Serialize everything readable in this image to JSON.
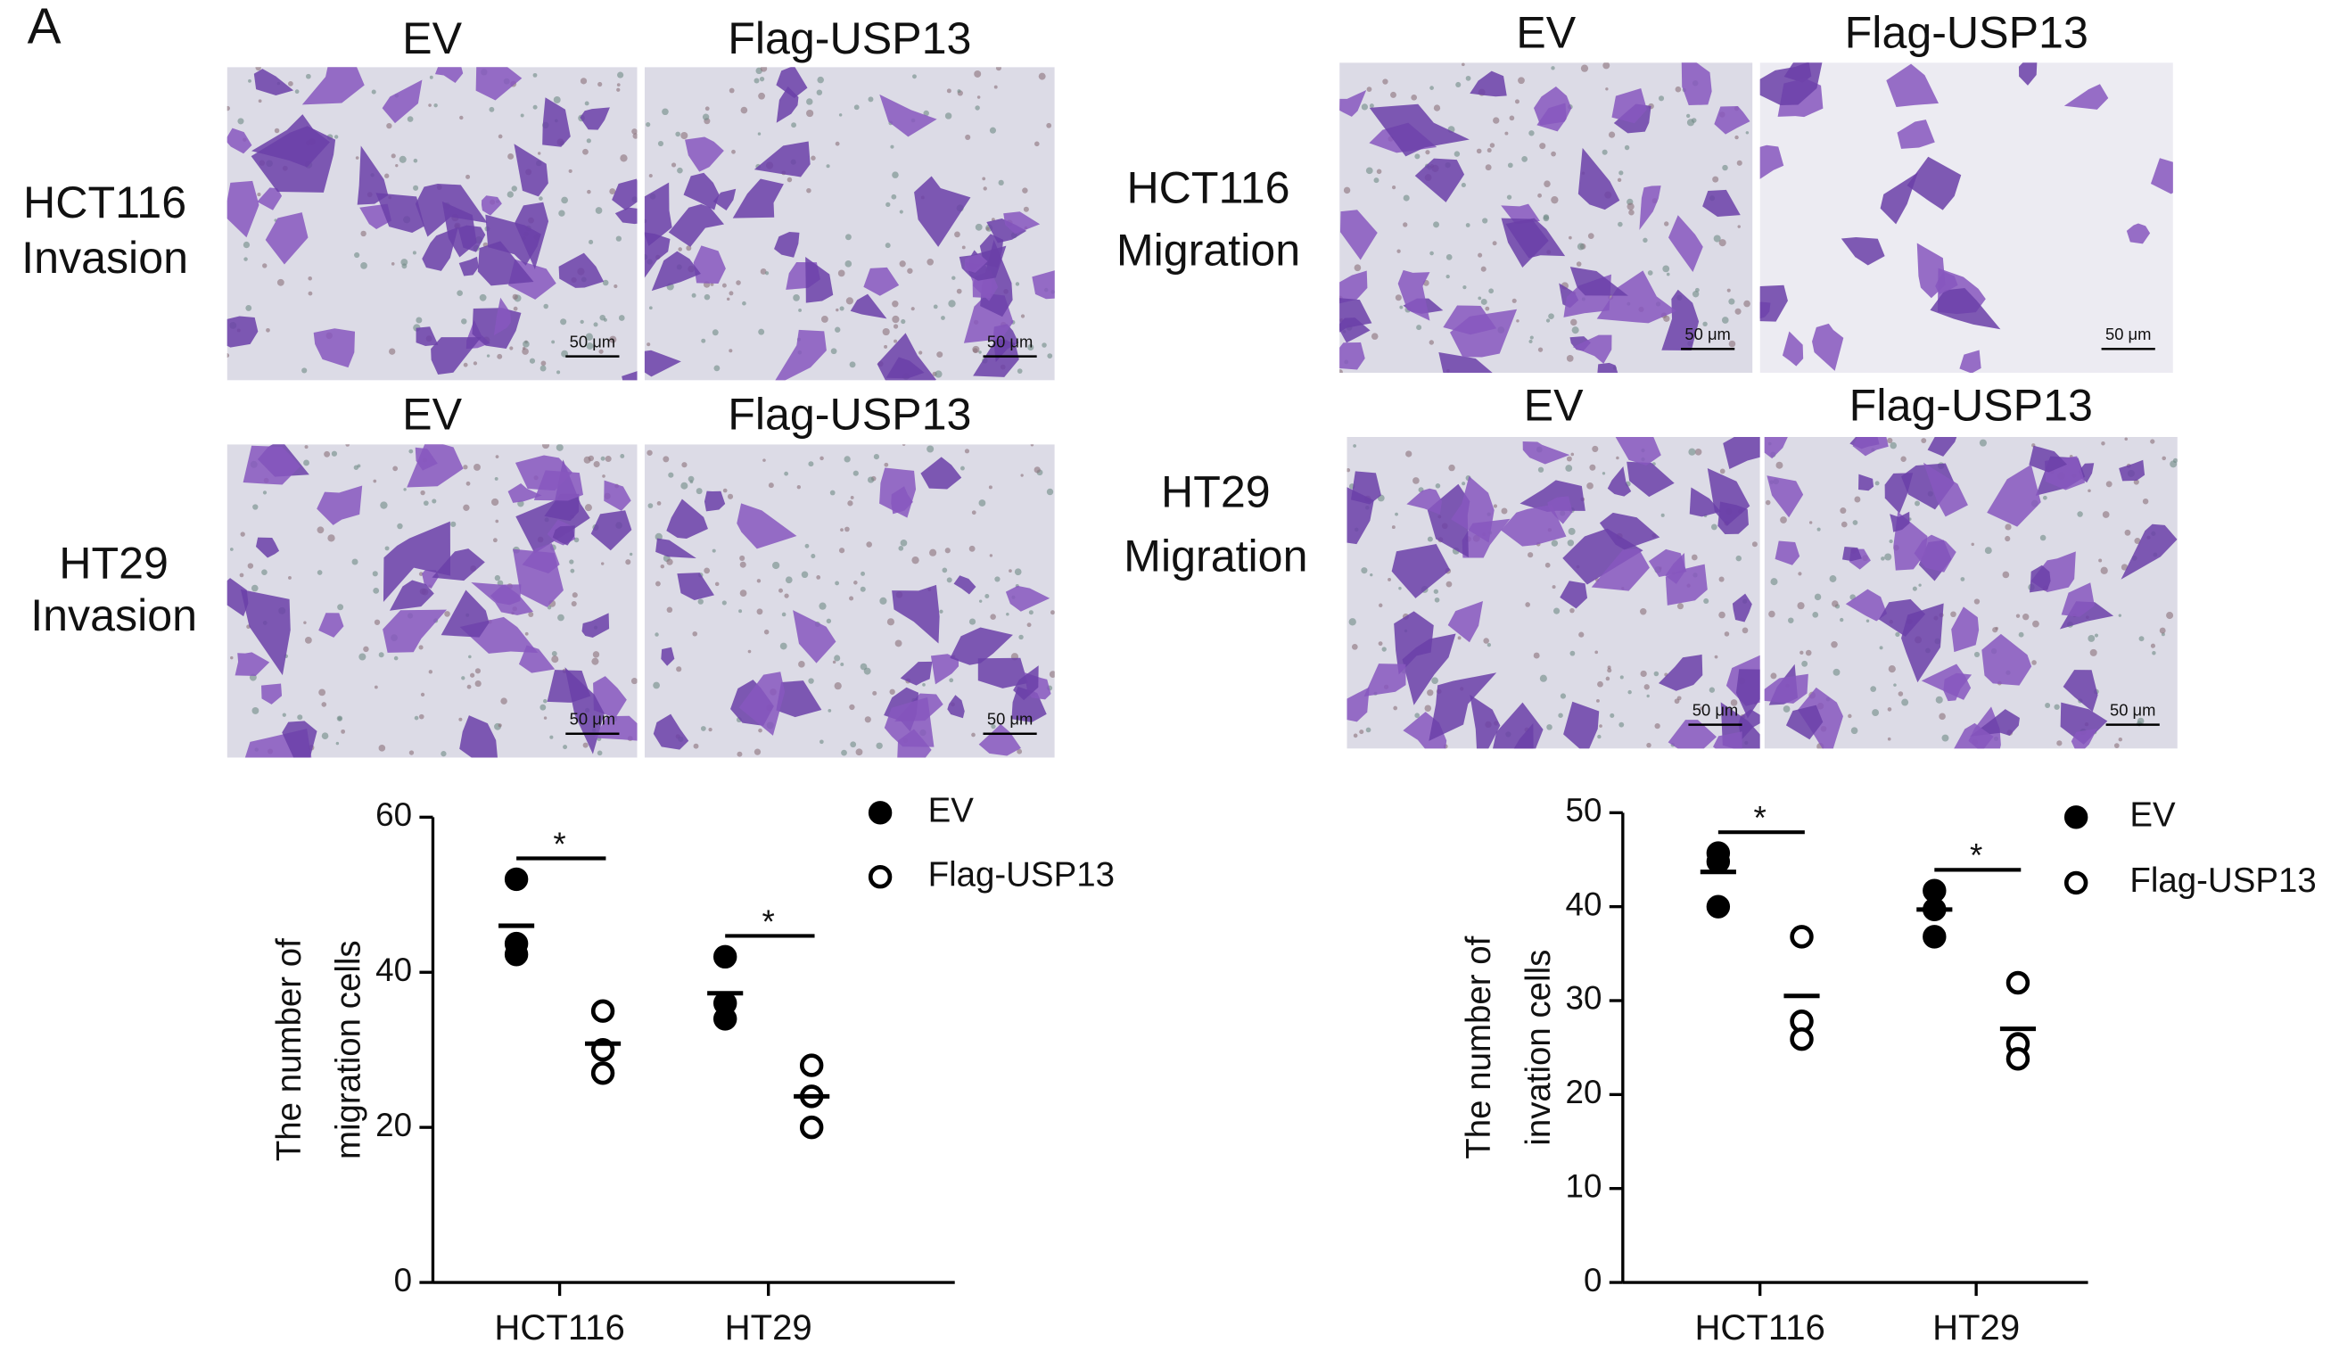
{
  "panel_label": "A",
  "image_groups": [
    {
      "row_label": [
        "HCT116",
        "Invasion"
      ],
      "columns": [
        "EV",
        "Flag-USP13"
      ],
      "scale_bars": [
        "50 μm",
        "50 μm"
      ]
    },
    {
      "row_label": [
        "HT29",
        "Invasion"
      ],
      "columns": [
        "EV",
        "Flag-USP13"
      ],
      "scale_bars": [
        "50 μm",
        "50 μm"
      ]
    },
    {
      "row_label": [
        "HCT116",
        "Migration"
      ],
      "columns": [
        "EV",
        "Flag-USP13"
      ],
      "scale_bars": [
        "50 μm",
        "50 μm"
      ]
    },
    {
      "row_label": [
        "HT29",
        "Migration"
      ],
      "columns": [
        "EV",
        "Flag-USP13"
      ],
      "scale_bars": [
        "50 μm",
        "50 μm"
      ]
    }
  ],
  "chart_data": [
    {
      "type": "scatter",
      "categories": [
        "HCT116",
        "HT29"
      ],
      "ylabel": [
        "The number of",
        "migration cells"
      ],
      "ylim": [
        0,
        60
      ],
      "yticks": [
        0,
        20,
        40,
        60
      ],
      "legend": "top-right",
      "series": [
        {
          "name": "EV",
          "color": "#000000",
          "marker": "filled",
          "values": [
            [
              52,
              43.7,
              42.3
            ],
            [
              42,
              36,
              34
            ]
          ],
          "means": [
            46,
            37.3
          ]
        },
        {
          "name": "Flag-USP13",
          "color": "#000000",
          "marker": "open",
          "values": [
            [
              35,
              30,
              27
            ],
            [
              28,
              24,
              20
            ]
          ],
          "means": [
            30.8,
            24
          ]
        }
      ],
      "significance": [
        "*",
        "*"
      ]
    },
    {
      "type": "scatter",
      "categories": [
        "HCT116",
        "HT29"
      ],
      "ylabel": [
        "The number of",
        "invation cells"
      ],
      "ylim": [
        0,
        50
      ],
      "yticks": [
        0,
        10,
        20,
        30,
        40,
        50
      ],
      "legend": "top-right",
      "series": [
        {
          "name": "EV",
          "color": "#000000",
          "marker": "filled",
          "values": [
            [
              45.7,
              44.8,
              40
            ],
            [
              41.7,
              39.7,
              36.8
            ]
          ],
          "means": [
            43.7,
            39.7
          ]
        },
        {
          "name": "Flag-USP13",
          "color": "#000000",
          "marker": "open",
          "values": [
            [
              36.8,
              27.8,
              25.9
            ],
            [
              31.9,
              25.4,
              23.8
            ]
          ],
          "means": [
            30.5,
            27
          ]
        }
      ],
      "significance": [
        "*",
        "*"
      ]
    }
  ]
}
